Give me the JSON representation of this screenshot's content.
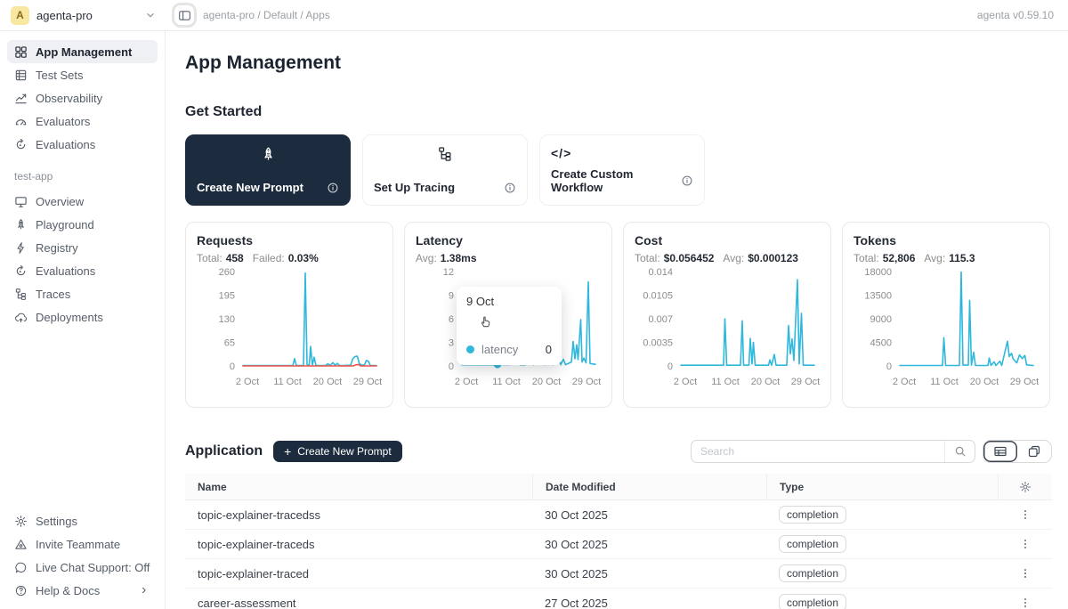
{
  "topbar": {
    "workspace_initial": "A",
    "workspace_name": "agenta-pro",
    "breadcrumb": "agenta-pro / Default / Apps",
    "version": "agenta v0.59.10"
  },
  "sidebar": {
    "main_items": [
      {
        "label": "App Management",
        "icon": "grid-icon",
        "selected": true
      },
      {
        "label": "Test Sets",
        "icon": "table-icon"
      },
      {
        "label": "Observability",
        "icon": "trend-chart-icon"
      },
      {
        "label": "Evaluators",
        "icon": "gauge-icon"
      },
      {
        "label": "Evaluations",
        "icon": "refresh-circle-icon"
      }
    ],
    "section_label": "test-app",
    "app_items": [
      {
        "label": "Overview",
        "icon": "monitor-icon"
      },
      {
        "label": "Playground",
        "icon": "rocket-icon"
      },
      {
        "label": "Registry",
        "icon": "lightning-icon"
      },
      {
        "label": "Evaluations",
        "icon": "refresh-circle-icon"
      },
      {
        "label": "Traces",
        "icon": "tree-icon"
      },
      {
        "label": "Deployments",
        "icon": "cloud-arrow-icon"
      }
    ],
    "bottom_items": [
      {
        "label": "Settings",
        "icon": "gear-icon"
      },
      {
        "label": "Invite Teammate",
        "icon": "triangle-icon"
      },
      {
        "label": "Live Chat Support: Off",
        "icon": "chat-bubble-icon"
      },
      {
        "label": "Help & Docs",
        "icon": "question-circle-icon",
        "has_chevron": true
      }
    ]
  },
  "main": {
    "page_title": "App Management",
    "get_started_title": "Get Started",
    "cards": [
      {
        "label": "Create New Prompt",
        "icon": "rocket-icon",
        "dark": true
      },
      {
        "label": "Set Up Tracing",
        "icon": "tree-icon"
      },
      {
        "label": "Create Custom Workflow",
        "icon": "code-icon",
        "icon_glyph": "</>"
      }
    ],
    "application": {
      "title": "Application",
      "create_button_plus": "+",
      "create_button_label": "Create New Prompt",
      "search_placeholder": "Search"
    },
    "table": {
      "columns": [
        "Name",
        "Date Modified",
        "Type"
      ],
      "rows": [
        {
          "name": "topic-explainer-tracedss",
          "date": "30 Oct 2025",
          "type": "completion"
        },
        {
          "name": "topic-explainer-traceds",
          "date": "30 Oct 2025",
          "type": "completion"
        },
        {
          "name": "topic-explainer-traced",
          "date": "30 Oct 2025",
          "type": "completion"
        },
        {
          "name": "career-assessment",
          "date": "27 Oct 2025",
          "type": "completion"
        }
      ]
    }
  },
  "colors": {
    "accent": "#2fb8dc",
    "danger": "#f0524a",
    "dark_navy": "#1c2c3e"
  },
  "chart_data": [
    {
      "type": "line",
      "title": "Requests",
      "stats": [
        {
          "label": "Total:",
          "value": "458"
        },
        {
          "label": "Failed:",
          "value": "0.03%"
        }
      ],
      "x_domain": [
        1,
        31
      ],
      "ylim": [
        0,
        260
      ],
      "y_ticks": [
        {
          "label": "0",
          "value": 0
        },
        {
          "label": "65",
          "value": 65
        },
        {
          "label": "130",
          "value": 130
        },
        {
          "label": "195",
          "value": 195
        },
        {
          "label": "260",
          "value": 260
        }
      ],
      "x_ticks": [
        {
          "label": "2 Oct",
          "day": 2
        },
        {
          "label": "11 Oct",
          "day": 11
        },
        {
          "label": "20 Oct",
          "day": 20
        },
        {
          "label": "29 Oct",
          "day": 29
        }
      ],
      "series": [
        {
          "name": "total",
          "color": "#2fb8dc",
          "points": [
            [
              1,
              1
            ],
            [
              12.2,
              1
            ],
            [
              12.6,
              20
            ],
            [
              13,
              1
            ],
            [
              14.6,
              1
            ],
            [
              15,
              256
            ],
            [
              15.4,
              4
            ],
            [
              15.9,
              2
            ],
            [
              16.2,
              54
            ],
            [
              16.6,
              3
            ],
            [
              17,
              24
            ],
            [
              17.4,
              1
            ],
            [
              19.5,
              1
            ],
            [
              20.1,
              6
            ],
            [
              20.6,
              1
            ],
            [
              21.2,
              9
            ],
            [
              21.7,
              2
            ],
            [
              22.2,
              7
            ],
            [
              22.7,
              1
            ],
            [
              23.4,
              1
            ],
            [
              25.2,
              2
            ],
            [
              25.7,
              20
            ],
            [
              26.2,
              26
            ],
            [
              26.7,
              27
            ],
            [
              27.1,
              8
            ],
            [
              27.6,
              2
            ],
            [
              28.3,
              3
            ],
            [
              28.7,
              15
            ],
            [
              29.2,
              13
            ],
            [
              29.6,
              1
            ],
            [
              31,
              1
            ]
          ]
        },
        {
          "name": "failed",
          "color": "#f0524a",
          "points": [
            [
              1,
              0
            ],
            [
              25.8,
              0
            ],
            [
              26.3,
              3
            ],
            [
              26.9,
              4
            ],
            [
              27.5,
              0
            ],
            [
              31,
              0
            ]
          ]
        }
      ]
    },
    {
      "type": "line",
      "title": "Latency",
      "stats": [
        {
          "label": "Avg:",
          "value": "1.38ms"
        }
      ],
      "x_domain": [
        1,
        31
      ],
      "ylim": [
        0,
        12
      ],
      "y_ticks": [
        {
          "label": "0",
          "value": 0
        },
        {
          "label": "3",
          "value": 3
        },
        {
          "label": "6",
          "value": 6
        },
        {
          "label": "9",
          "value": 9
        },
        {
          "label": "12",
          "value": 12
        }
      ],
      "x_ticks": [
        {
          "label": "2 Oct",
          "day": 2
        },
        {
          "label": "11 Oct",
          "day": 11
        },
        {
          "label": "20 Oct",
          "day": 20
        },
        {
          "label": "29 Oct",
          "day": 29
        }
      ],
      "series": [
        {
          "name": "latency",
          "color": "#2fb8dc",
          "points": [
            [
              1,
              0.15
            ],
            [
              8.6,
              0.15
            ],
            [
              9,
              0.18
            ],
            [
              11.7,
              0.18
            ],
            [
              12,
              0.85
            ],
            [
              13.8,
              0.85
            ],
            [
              14.1,
              0.15
            ],
            [
              15.2,
              0.15
            ],
            [
              15.5,
              0.85
            ],
            [
              16.8,
              0.85
            ],
            [
              17.1,
              0.15
            ],
            [
              18.2,
              0.85
            ],
            [
              19.2,
              0.85
            ],
            [
              19.5,
              0.15
            ],
            [
              20.2,
              0.85
            ],
            [
              21.2,
              0.85
            ],
            [
              21.5,
              0.15
            ],
            [
              22,
              0.85
            ],
            [
              22.9,
              0.85
            ],
            [
              23.2,
              0.15
            ],
            [
              23.8,
              0.85
            ],
            [
              24.3,
              0.15
            ],
            [
              25.6,
              0.5
            ],
            [
              26,
              3.1
            ],
            [
              26.4,
              0.9
            ],
            [
              26.8,
              2.7
            ],
            [
              27.1,
              0.8
            ],
            [
              27.7,
              5.9
            ],
            [
              28,
              0.5
            ],
            [
              28.4,
              1
            ],
            [
              28.9,
              0.4
            ],
            [
              29.4,
              10.7
            ],
            [
              29.8,
              0.3
            ],
            [
              31,
              0.2
            ]
          ]
        }
      ],
      "marker": {
        "day": 9,
        "value": 0.18,
        "color": "#2fb8dc"
      },
      "tooltip": {
        "date": "9 Oct",
        "series_label": "latency",
        "value": "0"
      }
    },
    {
      "type": "line",
      "title": "Cost",
      "stats": [
        {
          "label": "Total:",
          "value": "$0.056452"
        },
        {
          "label": "Avg:",
          "value": "$0.000123"
        }
      ],
      "x_domain": [
        1,
        31
      ],
      "ylim": [
        0,
        0.014
      ],
      "y_ticks": [
        {
          "label": "0",
          "value": 0
        },
        {
          "label": "0.0035",
          "value": 0.0035
        },
        {
          "label": "0.007",
          "value": 0.007
        },
        {
          "label": "0.0105",
          "value": 0.0105
        },
        {
          "label": "0.014",
          "value": 0.014
        }
      ],
      "x_ticks": [
        {
          "label": "2 Oct",
          "day": 2
        },
        {
          "label": "11 Oct",
          "day": 11
        },
        {
          "label": "20 Oct",
          "day": 20
        },
        {
          "label": "29 Oct",
          "day": 29
        }
      ],
      "series": [
        {
          "name": "cost",
          "color": "#2fb8dc",
          "points": [
            [
              1,
              0.0001
            ],
            [
              10.6,
              0.0001
            ],
            [
              10.9,
              0.007
            ],
            [
              11.3,
              0.0001
            ],
            [
              14.4,
              0.0001
            ],
            [
              14.8,
              0.0067
            ],
            [
              15.1,
              0.0001
            ],
            [
              16.3,
              0.0001
            ],
            [
              16.6,
              0.0041
            ],
            [
              17,
              0.0003
            ],
            [
              17.3,
              0.0035
            ],
            [
              17.7,
              0.0001
            ],
            [
              20.7,
              0.0001
            ],
            [
              21,
              0.0009
            ],
            [
              21.4,
              0.0001
            ],
            [
              22,
              0.0017
            ],
            [
              22.4,
              0.0001
            ],
            [
              24.8,
              0.0001
            ],
            [
              25.2,
              0.006
            ],
            [
              25.6,
              0.0018
            ],
            [
              26,
              0.004
            ],
            [
              26.4,
              0.0008
            ],
            [
              27.2,
              0.0128
            ],
            [
              27.6,
              0.0003
            ],
            [
              28.1,
              0.0078
            ],
            [
              28.5,
              0.0001
            ],
            [
              31,
              0.0001
            ]
          ]
        }
      ]
    },
    {
      "type": "line",
      "title": "Tokens",
      "stats": [
        {
          "label": "Total:",
          "value": "52,806"
        },
        {
          "label": "Avg:",
          "value": "115.3"
        }
      ],
      "x_domain": [
        1,
        31
      ],
      "ylim": [
        0,
        18000
      ],
      "y_ticks": [
        {
          "label": "0",
          "value": 0
        },
        {
          "label": "4500",
          "value": 4500
        },
        {
          "label": "9000",
          "value": 9000
        },
        {
          "label": "13500",
          "value": 13500
        },
        {
          "label": "18000",
          "value": 18000
        }
      ],
      "x_ticks": [
        {
          "label": "2 Oct",
          "day": 2
        },
        {
          "label": "11 Oct",
          "day": 11
        },
        {
          "label": "20 Oct",
          "day": 20
        },
        {
          "label": "29 Oct",
          "day": 29
        }
      ],
      "series": [
        {
          "name": "tokens",
          "color": "#2fb8dc",
          "points": [
            [
              1,
              80
            ],
            [
              10.6,
              80
            ],
            [
              10.9,
              5400
            ],
            [
              11.3,
              80
            ],
            [
              14.4,
              80
            ],
            [
              14.8,
              17900
            ],
            [
              15.2,
              150
            ],
            [
              16.4,
              150
            ],
            [
              16.7,
              12500
            ],
            [
              17.1,
              150
            ],
            [
              17.6,
              2600
            ],
            [
              18,
              80
            ],
            [
              20.8,
              80
            ],
            [
              21.1,
              1500
            ],
            [
              21.5,
              80
            ],
            [
              22.2,
              800
            ],
            [
              22.6,
              80
            ],
            [
              23.5,
              900
            ],
            [
              23.9,
              80
            ],
            [
              25.2,
              4700
            ],
            [
              25.6,
              1800
            ],
            [
              26.1,
              2400
            ],
            [
              26.5,
              1300
            ],
            [
              27.3,
              600
            ],
            [
              27.9,
              2100
            ],
            [
              28.5,
              1400
            ],
            [
              29.1,
              2000
            ],
            [
              29.5,
              200
            ],
            [
              31,
              80
            ]
          ]
        }
      ]
    }
  ]
}
